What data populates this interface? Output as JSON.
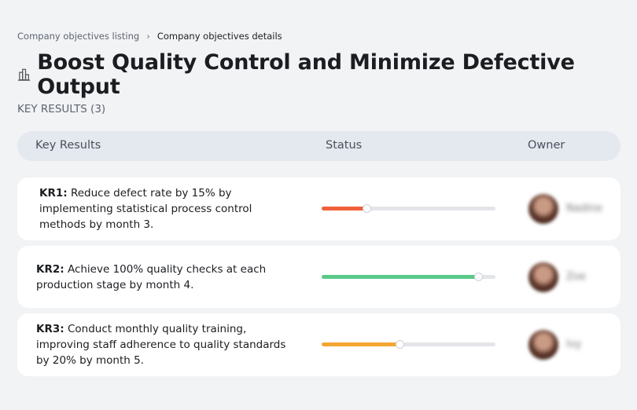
{
  "breadcrumb": [
    "Company objectives listing",
    "Company objectives details"
  ],
  "title": "Boost Quality Control and Minimize Defective Output",
  "section_label": "KEY RESULTS (3)",
  "table": {
    "columns": [
      "Key Results",
      "Status",
      "Owner"
    ],
    "rows": [
      {
        "code": "KR1:",
        "text": "Reduce defect rate by 15% by implementing statistical process control methods by month 3.",
        "progress": 26,
        "color": "#f0603a",
        "owner": "Nadine"
      },
      {
        "code": "KR2:",
        "text": "Achieve 100% quality checks at each production stage by month 4.",
        "progress": 90,
        "color": "#5bc98a",
        "owner": "Zoe"
      },
      {
        "code": "KR3:",
        "text": "Conduct monthly quality training, improving staff adherence to quality standards by 20% by month 5.",
        "progress": 45,
        "color": "#f5a732",
        "owner": "Ivy"
      }
    ]
  }
}
